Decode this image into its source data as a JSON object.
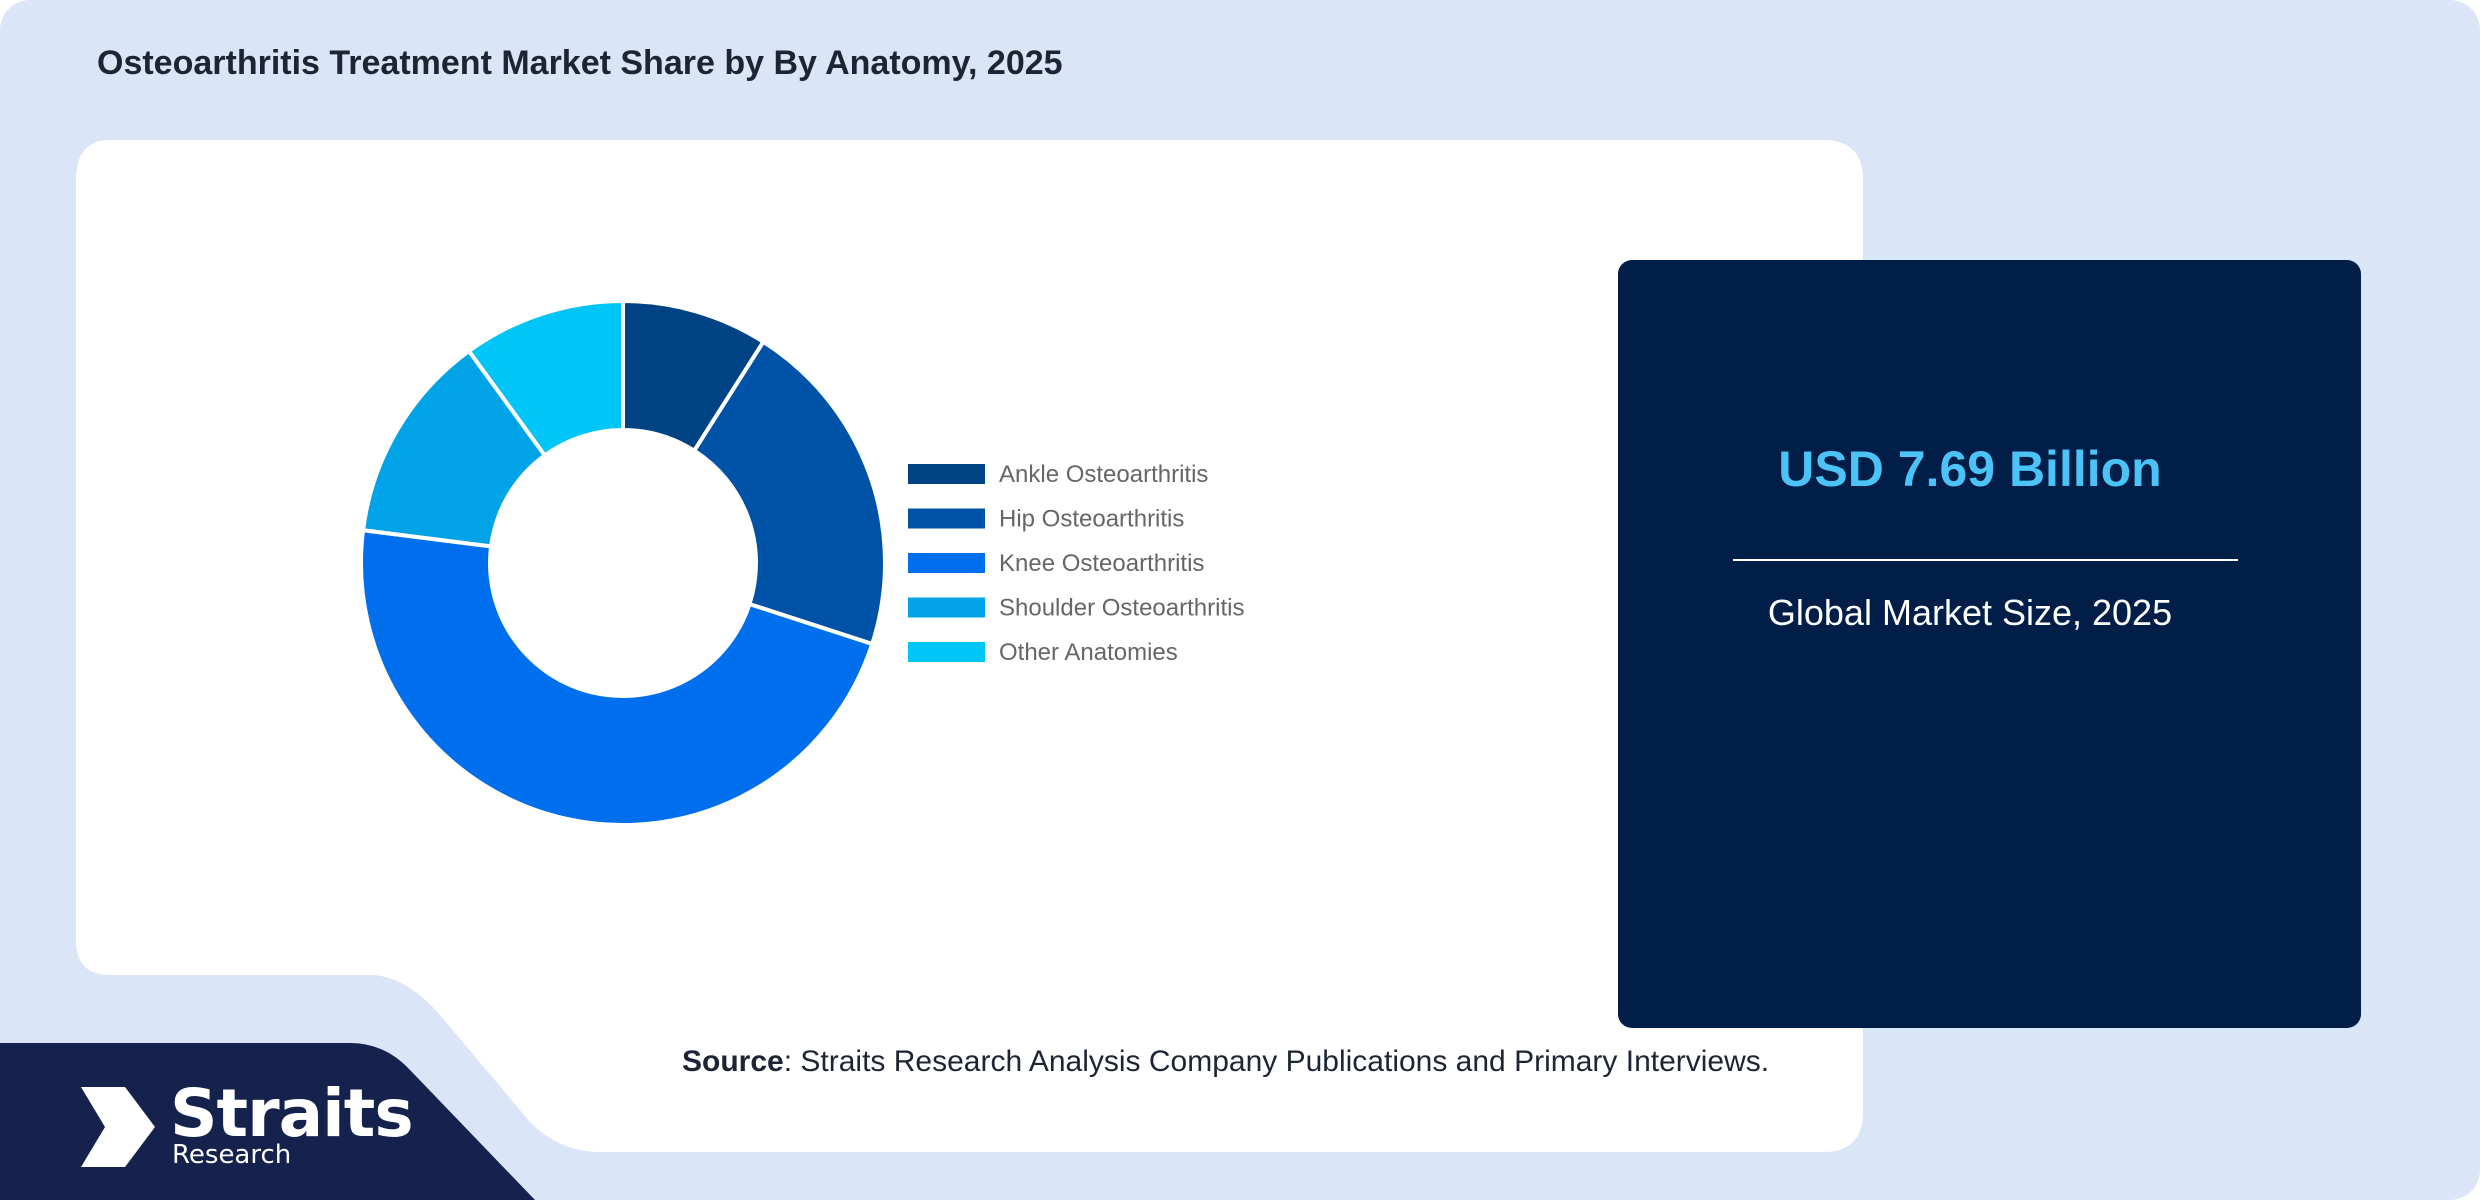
{
  "title": "Osteoarthritis Treatment Market Share by By Anatomy, 2025",
  "stat": {
    "value": "USD 7.69 Billion",
    "caption": "Global Market Size, 2025"
  },
  "source": {
    "label": "Source",
    "text": ": Straits Research Analysis Company Publications and Primary Interviews."
  },
  "brand": {
    "name": "Straits",
    "sub": "Research"
  },
  "colors": {
    "background": "#dae6f8",
    "panel_dark": "#001e48",
    "brand_dark": "#14224d",
    "stat_accent": "#4cc3f7",
    "legend_text": "#666666"
  },
  "chart_data": {
    "type": "pie",
    "donut": true,
    "title": "",
    "legend_position": "right",
    "categories": [
      "Ankle Osteoarthritis",
      "Hip Osteoarthritis",
      "Knee Osteoarthritis",
      "Shoulder Osteoarthritis",
      "Other Anatomies"
    ],
    "values": [
      9,
      21,
      47,
      13,
      10
    ],
    "colors": [
      "#004384",
      "#0052a7",
      "#006fee",
      "#00a3e6",
      "#00c5f7"
    ]
  }
}
